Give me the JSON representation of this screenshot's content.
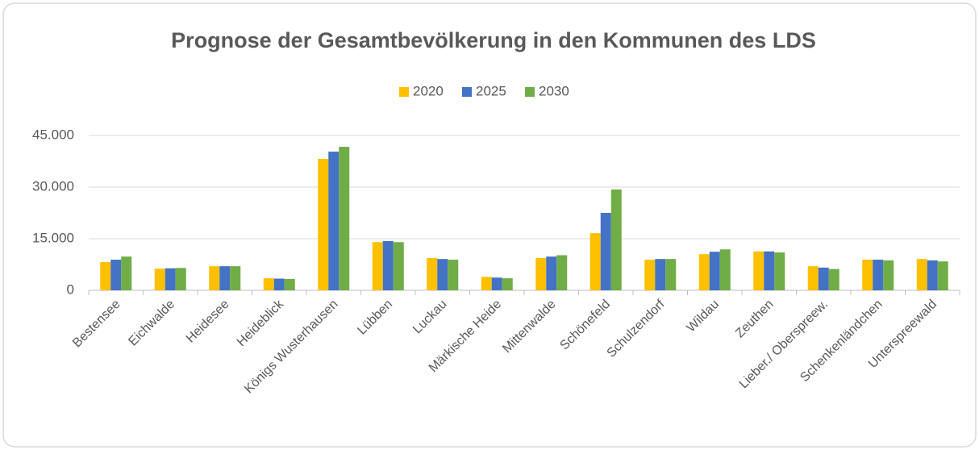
{
  "chart_data": {
    "type": "bar",
    "title": "Prognose der Gesamtbevölkerung in den Kommunen des LDS",
    "categories": [
      "Bestensee",
      "Eichwalde",
      "Heidesee",
      "Heideblick",
      "Königs Wusterhausen",
      "Lübben",
      "Luckau",
      "Märkische Heide",
      "Mittenwalde",
      "Schönefeld",
      "Schulzendorf",
      "Wildau",
      "Zeuthen",
      "Lieber./ Oberspreew.",
      "Schenkenländchen",
      "Unterspreewald"
    ],
    "series": [
      {
        "name": "2020",
        "color": "#ffc000",
        "values": [
          8200,
          6300,
          7000,
          3500,
          38200,
          14000,
          9400,
          3900,
          9400,
          16600,
          8900,
          10500,
          11300,
          7000,
          8900,
          9100
        ]
      },
      {
        "name": "2025",
        "color": "#4472c4",
        "values": [
          8900,
          6400,
          7000,
          3400,
          40300,
          14300,
          9100,
          3700,
          9800,
          22500,
          9100,
          11200,
          11300,
          6600,
          8900,
          8700
        ]
      },
      {
        "name": "2030",
        "color": "#70ad47",
        "values": [
          9800,
          6500,
          7000,
          3300,
          41700,
          14000,
          8900,
          3500,
          10200,
          29300,
          9100,
          11900,
          11000,
          6200,
          8700,
          8400
        ]
      }
    ],
    "ylim": [
      0,
      45000
    ],
    "yticks": [
      0,
      {
        "value": 15000,
        "label": "15.000"
      },
      {
        "value": 30000,
        "label": "30.000"
      },
      {
        "value": 45000,
        "label": "45.000"
      }
    ],
    "grid": true,
    "legend": "top"
  }
}
